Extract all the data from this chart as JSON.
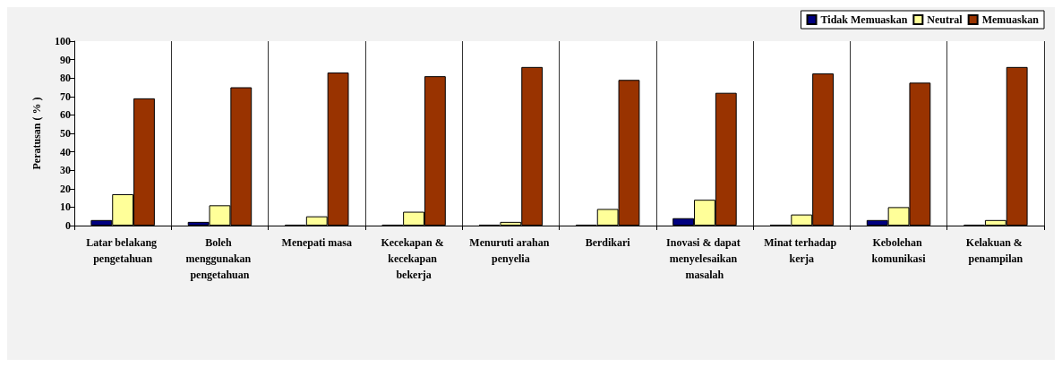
{
  "chart_data": {
    "type": "bar",
    "ylabel": "Peratusan ( % )",
    "categories": [
      "Latar belakang pengetahuan",
      "Boleh menggunakan pengetahuan",
      "Menepati masa",
      "Kecekapan & kecekapan bekerja",
      "Menuruti arahan penyelia",
      "Berdikari",
      "Inovasi & dapat menyelesaikan masalah",
      "Minat terhadap kerja",
      "Kebolehan komunikasi",
      "Kelakuan & penampilan"
    ],
    "series": [
      {
        "name": "Tidak Memuaskan",
        "color": "#000080",
        "values": [
          3,
          2,
          0.5,
          0.5,
          0.5,
          0.5,
          4,
          0.5,
          3,
          0.5
        ]
      },
      {
        "name": "Neutral",
        "color": "#ffff99",
        "values": [
          17,
          11,
          5,
          7.5,
          2,
          9,
          14,
          6,
          10,
          3
        ]
      },
      {
        "name": "Memuaskan",
        "color": "#993300",
        "values": [
          69,
          75,
          83,
          81,
          86,
          79,
          72,
          82.5,
          77.5,
          86
        ]
      }
    ],
    "ylim": [
      0,
      100
    ],
    "yticks": [
      0,
      10,
      20,
      30,
      40,
      50,
      60,
      70,
      80,
      90,
      100
    ],
    "grid": "x",
    "legend": "top right"
  }
}
